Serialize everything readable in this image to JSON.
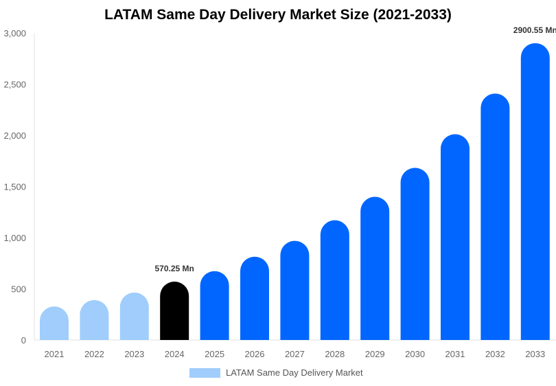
{
  "chart_data": {
    "type": "bar",
    "title": "LATAM Same Day Delivery Market Size (2021-2033)",
    "categories": [
      "2021",
      "2022",
      "2023",
      "2024",
      "2025",
      "2026",
      "2027",
      "2028",
      "2029",
      "2030",
      "2031",
      "2032",
      "2033"
    ],
    "series": [
      {
        "name": "LATAM Same Day Delivery Market",
        "values": [
          328,
          390,
          464,
          570.25,
          673,
          814,
          969,
          1170,
          1399,
          1682,
          2011,
          2408,
          2900.55
        ]
      }
    ],
    "bar_colors": [
      "#a0cdfc",
      "#a0cdfc",
      "#a0cdfc",
      "#000000",
      "#0066ff",
      "#0066ff",
      "#0066ff",
      "#0066ff",
      "#0066ff",
      "#0066ff",
      "#0066ff",
      "#0066ff",
      "#0066ff"
    ],
    "ylim": [
      0,
      3000
    ],
    "yticks": [
      "0",
      "500",
      "1,000",
      "1,500",
      "2,000",
      "2,500",
      "3,000"
    ],
    "annotations": [
      {
        "index": 3,
        "text": "570.25 Mn"
      },
      {
        "index": 12,
        "text": "2900.55 Mn"
      }
    ],
    "legend": "bottom",
    "grid": false
  }
}
